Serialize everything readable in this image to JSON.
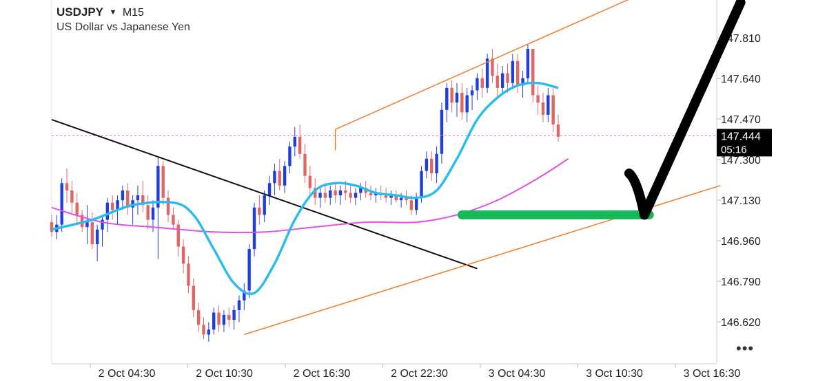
{
  "header": {
    "symbol": "USDJPY",
    "dropdown_icon": "caret-down-icon",
    "timeframe": "M15",
    "description": "US Dollar vs Japanese Yen"
  },
  "price_tag": {
    "price": "147.444",
    "countdown": "05:16"
  },
  "more_menu_icon": "ellipsis-icon",
  "colors": {
    "up_candle": "#1f3fdc",
    "down_candle": "#e06666",
    "fast_ma": "#2bbcef",
    "slow_ma": "#e24ee8",
    "channel": "#f07c2a",
    "trendline": "#111111",
    "support": "#16b85a",
    "checkmark": "#000000",
    "price_line": "#d46ee0"
  },
  "chart_data": {
    "type": "candlestick",
    "y_ticks": [
      "147.810",
      "147.640",
      "147.470",
      "147.300",
      "147.130",
      "146.960",
      "146.790",
      "146.620"
    ],
    "x_ticks": [
      "2 Oct 04:30",
      "2 Oct 10:30",
      "2 Oct 16:30",
      "2 Oct 22:30",
      "3 Oct 04:30",
      "3 Oct 10:30",
      "3 Oct 16:30"
    ],
    "ylim": [
      146.51,
      148.0
    ],
    "last_price": 147.444,
    "candles": [
      [
        147.09,
        147.12,
        147.03,
        147.05
      ],
      [
        147.05,
        147.12,
        147.02,
        147.08
      ],
      [
        147.08,
        147.27,
        147.05,
        147.25
      ],
      [
        147.25,
        147.31,
        147.17,
        147.22
      ],
      [
        147.22,
        147.26,
        147.13,
        147.17
      ],
      [
        147.17,
        147.21,
        147.08,
        147.12
      ],
      [
        147.12,
        147.14,
        147.05,
        147.07
      ],
      [
        147.07,
        147.16,
        147.0,
        147.09
      ],
      [
        147.09,
        147.13,
        146.98,
        147.0
      ],
      [
        147.0,
        147.08,
        146.93,
        147.06
      ],
      [
        147.06,
        147.12,
        146.99,
        147.1
      ],
      [
        147.1,
        147.19,
        147.05,
        147.17
      ],
      [
        147.17,
        147.2,
        147.1,
        147.14
      ],
      [
        147.14,
        147.2,
        147.08,
        147.18
      ],
      [
        147.18,
        147.24,
        147.14,
        147.22
      ],
      [
        147.22,
        147.25,
        147.12,
        147.15
      ],
      [
        147.15,
        147.2,
        147.08,
        147.18
      ],
      [
        147.18,
        147.24,
        147.12,
        147.2
      ],
      [
        147.2,
        147.26,
        147.13,
        147.16
      ],
      [
        147.16,
        147.2,
        147.06,
        147.1
      ],
      [
        147.1,
        147.18,
        147.05,
        147.15
      ],
      [
        147.15,
        147.36,
        146.94,
        147.32
      ],
      [
        147.32,
        147.34,
        147.16,
        147.19
      ],
      [
        147.19,
        147.22,
        147.09,
        147.12
      ],
      [
        147.12,
        147.15,
        147.06,
        147.08
      ],
      [
        147.08,
        147.1,
        146.95,
        146.99
      ],
      [
        146.99,
        147.02,
        146.88,
        146.92
      ],
      [
        146.92,
        146.95,
        146.8,
        146.83
      ],
      [
        146.83,
        146.86,
        146.7,
        146.73
      ],
      [
        146.73,
        146.76,
        146.64,
        146.67
      ],
      [
        146.67,
        146.7,
        146.61,
        146.63
      ],
      [
        146.63,
        146.68,
        146.6,
        146.65
      ],
      [
        146.65,
        146.74,
        146.63,
        146.72
      ],
      [
        146.72,
        146.75,
        146.64,
        146.67
      ],
      [
        146.67,
        146.73,
        146.64,
        146.71
      ],
      [
        146.71,
        146.74,
        146.66,
        146.69
      ],
      [
        146.69,
        146.75,
        146.65,
        146.73
      ],
      [
        146.73,
        146.79,
        146.68,
        146.77
      ],
      [
        146.77,
        146.84,
        146.73,
        146.81
      ],
      [
        146.81,
        147.0,
        146.78,
        146.98
      ],
      [
        146.98,
        147.17,
        146.95,
        147.15
      ],
      [
        147.15,
        147.2,
        147.08,
        147.12
      ],
      [
        147.12,
        147.22,
        147.09,
        147.2
      ],
      [
        147.2,
        147.28,
        147.16,
        147.25
      ],
      [
        147.25,
        147.33,
        147.2,
        147.3
      ],
      [
        147.3,
        147.35,
        147.22,
        147.24
      ],
      [
        147.24,
        147.34,
        147.21,
        147.32
      ],
      [
        147.32,
        147.42,
        147.29,
        147.4
      ],
      [
        147.4,
        147.48,
        147.36,
        147.44
      ],
      [
        147.44,
        147.49,
        147.35,
        147.37
      ],
      [
        147.37,
        147.41,
        147.25,
        147.28
      ],
      [
        147.28,
        147.32,
        147.2,
        147.23
      ],
      [
        147.23,
        147.27,
        147.16,
        147.19
      ],
      [
        147.19,
        147.24,
        147.15,
        147.21
      ],
      [
        147.21,
        147.25,
        147.17,
        147.19
      ],
      [
        147.19,
        147.24,
        147.16,
        147.22
      ],
      [
        147.22,
        147.25,
        147.17,
        147.2
      ],
      [
        147.2,
        147.24,
        147.16,
        147.22
      ],
      [
        147.22,
        147.26,
        147.18,
        147.21
      ],
      [
        147.21,
        147.24,
        147.17,
        147.19
      ],
      [
        147.19,
        147.23,
        147.16,
        147.21
      ],
      [
        147.21,
        147.25,
        147.18,
        147.23
      ],
      [
        147.23,
        147.26,
        147.19,
        147.21
      ],
      [
        147.21,
        147.24,
        147.18,
        147.2
      ],
      [
        147.2,
        147.23,
        147.17,
        147.21
      ],
      [
        147.21,
        147.24,
        147.18,
        147.2
      ],
      [
        147.2,
        147.23,
        147.17,
        147.19
      ],
      [
        147.19,
        147.22,
        147.16,
        147.2
      ],
      [
        147.2,
        147.22,
        147.17,
        147.18
      ],
      [
        147.18,
        147.21,
        147.15,
        147.19
      ],
      [
        147.19,
        147.22,
        147.16,
        147.18
      ],
      [
        147.18,
        147.2,
        147.12,
        147.14
      ],
      [
        147.14,
        147.21,
        147.12,
        147.19
      ],
      [
        147.19,
        147.32,
        147.17,
        147.3
      ],
      [
        147.3,
        147.38,
        147.27,
        147.35
      ],
      [
        147.35,
        147.38,
        147.26,
        147.29
      ],
      [
        147.29,
        147.4,
        147.25,
        147.37
      ],
      [
        147.37,
        147.58,
        147.33,
        147.55
      ],
      [
        147.55,
        147.66,
        147.5,
        147.64
      ],
      [
        147.64,
        147.67,
        147.54,
        147.58
      ],
      [
        147.58,
        147.66,
        147.52,
        147.62
      ],
      [
        147.62,
        147.66,
        147.51,
        147.54
      ],
      [
        147.54,
        147.64,
        147.5,
        147.61
      ],
      [
        147.61,
        147.65,
        147.55,
        147.63
      ],
      [
        147.63,
        147.7,
        147.59,
        147.68
      ],
      [
        147.68,
        147.72,
        147.6,
        147.64
      ],
      [
        147.64,
        147.78,
        147.62,
        147.76
      ],
      [
        147.76,
        147.8,
        147.66,
        147.69
      ],
      [
        147.69,
        147.74,
        147.6,
        147.64
      ],
      [
        147.64,
        147.73,
        147.61,
        147.7
      ],
      [
        147.7,
        147.74,
        147.62,
        147.66
      ],
      [
        147.66,
        147.78,
        147.64,
        147.75
      ],
      [
        147.75,
        147.78,
        147.62,
        147.65
      ],
      [
        147.65,
        147.71,
        147.6,
        147.68
      ],
      [
        147.68,
        147.82,
        147.66,
        147.8
      ],
      [
        147.8,
        147.8,
        147.58,
        147.61
      ],
      [
        147.61,
        147.65,
        147.53,
        147.58
      ],
      [
        147.58,
        147.62,
        147.5,
        147.53
      ],
      [
        147.53,
        147.64,
        147.5,
        147.61
      ],
      [
        147.61,
        147.64,
        147.46,
        147.49
      ],
      [
        147.49,
        147.53,
        147.42,
        147.44
      ]
    ],
    "fast_ma": [
      [
        0,
        147.06
      ],
      [
        8,
        147.1
      ],
      [
        16,
        147.16
      ],
      [
        24,
        147.17
      ],
      [
        28,
        147.12
      ],
      [
        32,
        146.98
      ],
      [
        36,
        146.84
      ],
      [
        40,
        146.8
      ],
      [
        44,
        146.92
      ],
      [
        48,
        147.1
      ],
      [
        52,
        147.22
      ],
      [
        56,
        147.25
      ],
      [
        60,
        147.24
      ],
      [
        64,
        147.21
      ],
      [
        68,
        147.2
      ],
      [
        72,
        147.19
      ],
      [
        76,
        147.22
      ],
      [
        80,
        147.35
      ],
      [
        84,
        147.51
      ],
      [
        88,
        147.6
      ],
      [
        92,
        147.65
      ],
      [
        96,
        147.66
      ],
      [
        100,
        147.64
      ]
    ],
    "slow_ma": [
      [
        0,
        147.15
      ],
      [
        10,
        147.09
      ],
      [
        20,
        147.07
      ],
      [
        32,
        147.05
      ],
      [
        42,
        147.05
      ],
      [
        52,
        147.07
      ],
      [
        62,
        147.09
      ],
      [
        72,
        147.09
      ],
      [
        80,
        147.12
      ],
      [
        88,
        147.18
      ],
      [
        96,
        147.27
      ],
      [
        102,
        147.35
      ]
    ],
    "annotations": {
      "channel_upper": [
        [
          56,
          147.47
        ],
        [
          118,
          148.04
        ]
      ],
      "channel_lower": [
        [
          38,
          146.63
        ],
        [
          132,
          147.24
        ]
      ],
      "trendline": [
        [
          0,
          147.51
        ],
        [
          84,
          146.9
        ]
      ],
      "support_zone": {
        "from": 81,
        "to": 118,
        "price": 147.12
      },
      "checkmark": [
        [
          114,
          147.29
        ],
        [
          117,
          147.12
        ],
        [
          136,
          147.99
        ]
      ]
    }
  }
}
